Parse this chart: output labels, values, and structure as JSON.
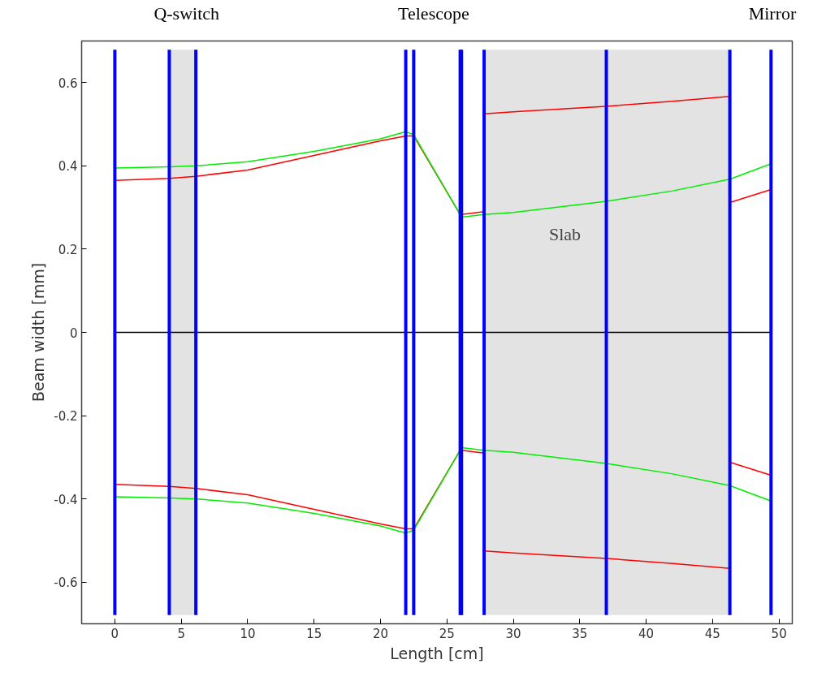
{
  "chart_data": {
    "type": "line",
    "xlabel": "Length [cm]",
    "ylabel": "Beam width [mm]",
    "xlim": [
      -2.5,
      51
    ],
    "ylim": [
      -0.7,
      0.7
    ],
    "xticks": [
      0,
      5,
      10,
      15,
      20,
      25,
      30,
      35,
      40,
      45,
      50
    ],
    "yticks": [
      -0.6,
      -0.4,
      -0.2,
      0,
      0.2,
      0.4,
      0.6
    ],
    "grid": false,
    "marker": "none",
    "line_style": "solid",
    "series": [
      {
        "color": "#ff0000",
        "x": [
          0,
          4.1,
          6.1,
          10,
          15,
          20,
          21.9,
          22.5,
          26,
          26.1,
          27.8
        ],
        "values": [
          0.365,
          0.37,
          0.375,
          0.39,
          0.425,
          0.46,
          0.472,
          0.472,
          0.283,
          0.283,
          0.29
        ]
      },
      {
        "color": "#ff0000",
        "x": [
          27.8,
          30,
          37,
          42,
          46.3
        ],
        "values": [
          0.525,
          0.53,
          0.543,
          0.555,
          0.567
        ]
      },
      {
        "color": "#ff0000",
        "x": [
          46.3,
          49.4
        ],
        "values": [
          0.312,
          0.343
        ]
      },
      {
        "color": "#00ee00",
        "x": [
          0,
          4.1,
          6.1,
          10,
          15,
          20,
          21.9,
          22.5,
          26,
          26.1,
          27.8,
          30,
          37,
          42,
          46.3,
          49.4
        ],
        "values": [
          0.395,
          0.398,
          0.4,
          0.41,
          0.435,
          0.465,
          0.482,
          0.475,
          0.283,
          0.277,
          0.283,
          0.288,
          0.315,
          0.34,
          0.368,
          0.405
        ]
      },
      {
        "color": "#ff0000",
        "x": [
          0,
          4.1,
          6.1,
          10,
          15,
          20,
          21.9,
          22.5,
          26,
          26.1,
          27.8
        ],
        "values": [
          -0.365,
          -0.37,
          -0.375,
          -0.39,
          -0.425,
          -0.46,
          -0.472,
          -0.472,
          -0.283,
          -0.283,
          -0.29
        ]
      },
      {
        "color": "#ff0000",
        "x": [
          27.8,
          30,
          37,
          42,
          46.3
        ],
        "values": [
          -0.525,
          -0.53,
          -0.543,
          -0.555,
          -0.567
        ]
      },
      {
        "color": "#ff0000",
        "x": [
          46.3,
          49.4
        ],
        "values": [
          -0.312,
          -0.343
        ]
      },
      {
        "color": "#00ee00",
        "x": [
          0,
          4.1,
          6.1,
          10,
          15,
          20,
          21.9,
          22.5,
          26,
          26.1,
          27.8,
          30,
          37,
          42,
          46.3,
          49.4
        ],
        "values": [
          -0.395,
          -0.398,
          -0.4,
          -0.41,
          -0.435,
          -0.465,
          -0.482,
          -0.475,
          -0.283,
          -0.277,
          -0.283,
          -0.288,
          -0.315,
          -0.34,
          -0.368,
          -0.405
        ]
      }
    ],
    "ref_lines": [
      {
        "axis": "y",
        "value": 0,
        "color": "#000000"
      },
      {
        "axis": "x",
        "value": 0,
        "color": "#0000ff"
      },
      {
        "axis": "x",
        "value": 4.1,
        "color": "#0000ff"
      },
      {
        "axis": "x",
        "value": 6.1,
        "color": "#0000ff"
      },
      {
        "axis": "x",
        "value": 21.9,
        "color": "#0000ff"
      },
      {
        "axis": "x",
        "value": 22.5,
        "color": "#0000ff"
      },
      {
        "axis": "x",
        "value": 26.0,
        "color": "#0000ff"
      },
      {
        "axis": "x",
        "value": 26.1,
        "color": "#0000ff"
      },
      {
        "axis": "x",
        "value": 27.8,
        "color": "#0000ff"
      },
      {
        "axis": "x",
        "value": 37,
        "color": "#0000ff"
      },
      {
        "axis": "x",
        "value": 46.3,
        "color": "#0000ff"
      },
      {
        "axis": "x",
        "value": 49.4,
        "color": "#0000ff"
      }
    ],
    "bands": [
      {
        "axis": "x",
        "from": 4.1,
        "to": 6.1,
        "color": "#e3e3e3"
      },
      {
        "axis": "x",
        "from": 27.8,
        "to": 46.3,
        "color": "#e3e3e3"
      }
    ],
    "annotations": [
      "Q-switch",
      "Telescope",
      "Mirror",
      "Slab"
    ]
  }
}
